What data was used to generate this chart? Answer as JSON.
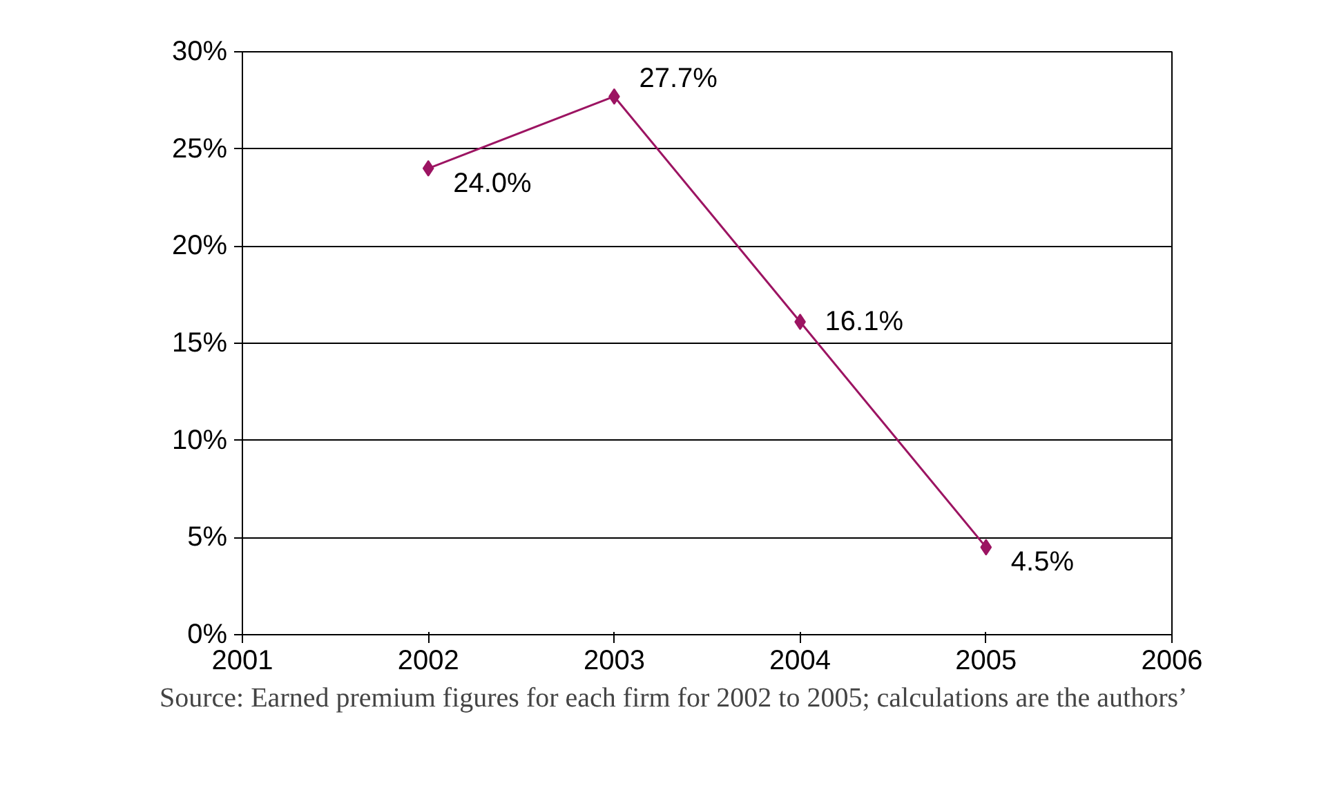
{
  "chart_data": {
    "type": "line",
    "x": [
      2002,
      2003,
      2004,
      2005
    ],
    "series": [
      {
        "color": "#9c1462",
        "values": [
          24.0,
          27.7,
          16.1,
          4.5
        ],
        "value_labels": [
          "24.0%",
          "27.7%",
          "16.1%",
          "4.5%"
        ]
      }
    ],
    "xlim": [
      2001,
      2006
    ],
    "xticks": [
      2001,
      2002,
      2003,
      2004,
      2005,
      2006
    ],
    "ylim": [
      0,
      30
    ],
    "yticks": [
      {
        "value": 0,
        "label": "0%"
      },
      {
        "value": 5,
        "label": "5%"
      },
      {
        "value": 10,
        "label": "10%"
      },
      {
        "value": 15,
        "label": "15%"
      },
      {
        "value": 20,
        "label": "20%"
      },
      {
        "value": 25,
        "label": "25%"
      },
      {
        "value": 30,
        "label": "30%"
      }
    ],
    "grid": "y",
    "marker": "diamond",
    "line_style": "solid",
    "annotations": [
      "Source: Earned premium figures for each firm for 2002 to 2005; calculations are the authors’"
    ]
  }
}
